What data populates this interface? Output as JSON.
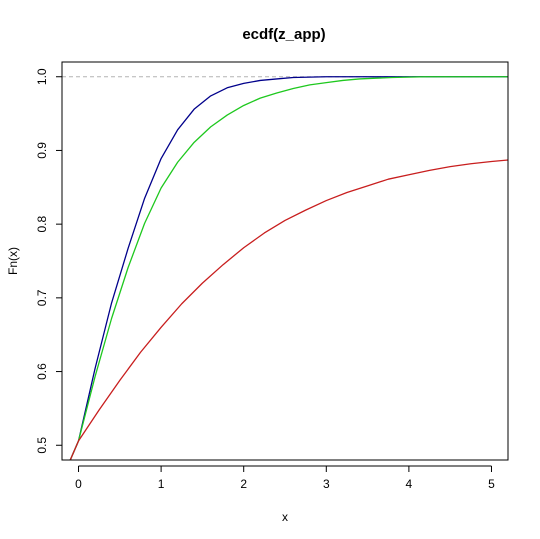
{
  "chart_data": {
    "type": "line",
    "title": "ecdf(z_app)",
    "xlabel": "x",
    "ylabel": "Fn(x)",
    "xlim": [
      -0.2,
      5.2
    ],
    "ylim": [
      0.48,
      1.02
    ],
    "x_ticks": [
      0,
      1,
      2,
      3,
      4,
      5
    ],
    "y_ticks": [
      0.5,
      0.6,
      0.7,
      0.8,
      0.9,
      1.0
    ],
    "x_tick_labels": [
      "0",
      "1",
      "2",
      "3",
      "4",
      "5"
    ],
    "y_tick_labels": [
      "0.5",
      "0.6",
      "0.7",
      "0.8",
      "0.9",
      "1.0"
    ],
    "grid": false,
    "legend": "none",
    "reference_lines": [
      {
        "axis": "y",
        "value": 1.0,
        "color": "#b3b3b3",
        "style": "dashed"
      }
    ],
    "series": [
      {
        "color": "#00008b",
        "x": [
          -0.1,
          0,
          0.2,
          0.4,
          0.6,
          0.8,
          1.0,
          1.2,
          1.4,
          1.6,
          1.8,
          2.0,
          2.2,
          2.4,
          2.6,
          2.8,
          3.0,
          3.2,
          3.4,
          3.6,
          3.8,
          4.0,
          4.2,
          4.4,
          4.6,
          4.8,
          5.0,
          5.2
        ],
        "y": [
          0.48,
          0.506,
          0.604,
          0.693,
          0.767,
          0.835,
          0.889,
          0.928,
          0.956,
          0.974,
          0.985,
          0.991,
          0.995,
          0.997,
          0.999,
          0.9995,
          1.0,
          1.0,
          1.0,
          1.0,
          1.0,
          1.0,
          1.0,
          1.0,
          1.0,
          1.0,
          1.0,
          1.0
        ]
      },
      {
        "color": "#1ec81e",
        "x": [
          -0.1,
          0,
          0.2,
          0.4,
          0.6,
          0.8,
          1.0,
          1.2,
          1.4,
          1.6,
          1.8,
          2.0,
          2.2,
          2.4,
          2.6,
          2.8,
          3.0,
          3.2,
          3.4,
          3.6,
          3.8,
          4.0,
          4.2,
          4.4,
          4.6,
          4.8,
          5.0,
          5.2
        ],
        "y": [
          0.48,
          0.506,
          0.593,
          0.672,
          0.741,
          0.801,
          0.849,
          0.884,
          0.911,
          0.932,
          0.948,
          0.961,
          0.971,
          0.978,
          0.984,
          0.989,
          0.992,
          0.995,
          0.997,
          0.998,
          0.999,
          0.9995,
          1.0,
          1.0,
          1.0,
          1.0,
          1.0,
          1.0
        ]
      },
      {
        "color": "#c81e1e",
        "x": [
          -0.1,
          0,
          0.25,
          0.5,
          0.75,
          1.0,
          1.25,
          1.5,
          1.75,
          2.0,
          2.25,
          2.5,
          2.75,
          3.0,
          3.25,
          3.5,
          3.75,
          4.0,
          4.25,
          4.5,
          4.75,
          5.0,
          5.2
        ],
        "y": [
          0.48,
          0.506,
          0.548,
          0.588,
          0.626,
          0.66,
          0.692,
          0.72,
          0.745,
          0.768,
          0.788,
          0.805,
          0.819,
          0.832,
          0.843,
          0.852,
          0.861,
          0.867,
          0.873,
          0.878,
          0.882,
          0.885,
          0.887
        ]
      }
    ]
  }
}
